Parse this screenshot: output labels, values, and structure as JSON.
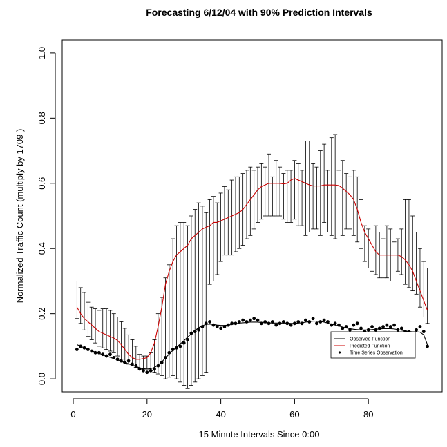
{
  "chart_data": {
    "type": "line",
    "title": "Forecasting 6/12/04 with 90% Prediction Intervals",
    "xlabel": "15 Minute Intervals Since 0:00",
    "ylabel": "Normalized Traffic Count (multiply by  1709 )",
    "xlim": [
      -3,
      100
    ],
    "ylim": [
      -0.04,
      1.04
    ],
    "x_ticks": [
      0,
      20,
      40,
      60,
      80
    ],
    "y_ticks": [
      0.0,
      0.2,
      0.4,
      0.6,
      0.8,
      1.0
    ],
    "y_tick_labels": [
      "0.0",
      "0.2",
      "0.4",
      "0.6",
      "0.8",
      "1.0"
    ],
    "grid": false,
    "legend": {
      "position": "bottom-right",
      "entries": [
        {
          "label": "Observed Function",
          "color": "#000000",
          "style": "line"
        },
        {
          "label": "Predicted Function",
          "color": "#cc0000",
          "style": "line"
        },
        {
          "label": "Time Series Observation",
          "color": "#000000",
          "style": "point"
        }
      ]
    },
    "colors": {
      "observed": "#000000",
      "predicted": "#cc0000",
      "interval": "#000000"
    },
    "x": [
      1,
      2,
      3,
      4,
      5,
      6,
      7,
      8,
      9,
      10,
      11,
      12,
      13,
      14,
      15,
      16,
      17,
      18,
      19,
      20,
      21,
      22,
      23,
      24,
      25,
      26,
      27,
      28,
      29,
      30,
      31,
      32,
      33,
      34,
      35,
      36,
      37,
      38,
      39,
      40,
      41,
      42,
      43,
      44,
      45,
      46,
      47,
      48,
      49,
      50,
      51,
      52,
      53,
      54,
      55,
      56,
      57,
      58,
      59,
      60,
      61,
      62,
      63,
      64,
      65,
      66,
      67,
      68,
      69,
      70,
      71,
      72,
      73,
      74,
      75,
      76,
      77,
      78,
      79,
      80,
      81,
      82,
      83,
      84,
      85,
      86,
      87,
      88,
      89,
      90,
      91,
      92,
      93,
      94,
      95,
      96
    ],
    "series": [
      {
        "name": "Time Series Observation",
        "kind": "points",
        "values": [
          0.09,
          0.1,
          0.095,
          0.09,
          0.085,
          0.08,
          0.08,
          0.075,
          0.07,
          0.075,
          0.065,
          0.06,
          0.055,
          0.05,
          0.055,
          0.045,
          0.04,
          0.03,
          0.025,
          0.02,
          0.025,
          0.03,
          0.04,
          0.05,
          0.065,
          0.08,
          0.09,
          0.095,
          0.1,
          0.11,
          0.12,
          0.14,
          0.145,
          0.15,
          0.16,
          0.17,
          0.175,
          0.165,
          0.16,
          0.155,
          0.16,
          0.165,
          0.17,
          0.17,
          0.175,
          0.18,
          0.175,
          0.18,
          0.185,
          0.18,
          0.17,
          0.175,
          0.17,
          0.175,
          0.165,
          0.17,
          0.175,
          0.17,
          0.165,
          0.17,
          0.175,
          0.17,
          0.18,
          0.175,
          0.185,
          0.17,
          0.175,
          0.18,
          0.175,
          0.165,
          0.17,
          0.165,
          0.155,
          0.16,
          0.15,
          0.165,
          0.17,
          0.155,
          0.145,
          0.15,
          0.16,
          0.15,
          0.155,
          0.16,
          0.165,
          0.16,
          0.165,
          0.15,
          0.155,
          0.145,
          0.145,
          0.14,
          0.15,
          0.16,
          0.145,
          0.1
        ]
      },
      {
        "name": "Observed Function",
        "kind": "line",
        "values": [
          0.105,
          0.1,
          0.095,
          0.09,
          0.086,
          0.082,
          0.078,
          0.074,
          0.07,
          0.066,
          0.062,
          0.058,
          0.054,
          0.05,
          0.046,
          0.042,
          0.038,
          0.034,
          0.031,
          0.03,
          0.031,
          0.035,
          0.042,
          0.052,
          0.064,
          0.076,
          0.087,
          0.097,
          0.107,
          0.117,
          0.128,
          0.138,
          0.148,
          0.157,
          0.163,
          0.167,
          0.168,
          0.167,
          0.165,
          0.164,
          0.164,
          0.165,
          0.167,
          0.169,
          0.171,
          0.172,
          0.173,
          0.174,
          0.174,
          0.174,
          0.173,
          0.172,
          0.172,
          0.171,
          0.171,
          0.171,
          0.171,
          0.171,
          0.17,
          0.17,
          0.171,
          0.172,
          0.174,
          0.176,
          0.177,
          0.177,
          0.176,
          0.174,
          0.171,
          0.168,
          0.165,
          0.162,
          0.159,
          0.156,
          0.154,
          0.152,
          0.151,
          0.15,
          0.15,
          0.15,
          0.151,
          0.152,
          0.153,
          0.154,
          0.154,
          0.154,
          0.153,
          0.151,
          0.149,
          0.147,
          0.145,
          0.144,
          0.144,
          0.143,
          0.135,
          0.105
        ]
      },
      {
        "name": "Predicted Function",
        "kind": "line",
        "values": [
          0.22,
          0.2,
          0.185,
          0.175,
          0.165,
          0.155,
          0.145,
          0.14,
          0.135,
          0.13,
          0.125,
          0.118,
          0.105,
          0.09,
          0.075,
          0.065,
          0.06,
          0.06,
          0.062,
          0.065,
          0.08,
          0.11,
          0.16,
          0.22,
          0.29,
          0.33,
          0.36,
          0.38,
          0.39,
          0.4,
          0.41,
          0.43,
          0.44,
          0.45,
          0.46,
          0.465,
          0.47,
          0.48,
          0.48,
          0.485,
          0.49,
          0.495,
          0.5,
          0.505,
          0.51,
          0.52,
          0.535,
          0.55,
          0.565,
          0.58,
          0.59,
          0.595,
          0.6,
          0.6,
          0.6,
          0.6,
          0.598,
          0.6,
          0.61,
          0.615,
          0.61,
          0.605,
          0.6,
          0.595,
          0.592,
          0.592,
          0.592,
          0.595,
          0.595,
          0.595,
          0.595,
          0.593,
          0.585,
          0.575,
          0.565,
          0.55,
          0.52,
          0.48,
          0.45,
          0.43,
          0.41,
          0.39,
          0.38,
          0.38,
          0.38,
          0.38,
          0.38,
          0.38,
          0.375,
          0.365,
          0.35,
          0.33,
          0.3,
          0.27,
          0.24,
          0.21
        ]
      }
    ],
    "intervals": {
      "name": "90% Prediction Intervals",
      "lower": [
        0.185,
        0.17,
        0.15,
        0.13,
        0.12,
        0.11,
        0.1,
        0.095,
        0.09,
        0.085,
        0.08,
        0.07,
        0.06,
        0.05,
        0.045,
        0.04,
        0.035,
        0.03,
        0.03,
        0.03,
        0.025,
        0.02,
        0.015,
        0.01,
        0.0,
        0.005,
        0.01,
        0.0,
        -0.01,
        -0.02,
        -0.03,
        -0.02,
        -0.01,
        0.0,
        0.01,
        0.02,
        0.29,
        0.3,
        0.32,
        0.36,
        0.38,
        0.38,
        0.38,
        0.39,
        0.4,
        0.41,
        0.43,
        0.44,
        0.46,
        0.48,
        0.49,
        0.5,
        0.5,
        0.5,
        0.5,
        0.5,
        0.49,
        0.48,
        0.48,
        0.49,
        0.47,
        0.47,
        0.44,
        0.45,
        0.46,
        0.46,
        0.44,
        0.48,
        0.45,
        0.44,
        0.43,
        0.45,
        0.44,
        0.46,
        0.46,
        0.44,
        0.42,
        0.4,
        0.36,
        0.34,
        0.33,
        0.32,
        0.31,
        0.31,
        0.31,
        0.3,
        0.3,
        0.33,
        0.32,
        0.29,
        0.28,
        0.27,
        0.26,
        0.22,
        0.19,
        0.17
      ],
      "upper": [
        0.3,
        0.28,
        0.265,
        0.235,
        0.22,
        0.215,
        0.21,
        0.215,
        0.215,
        0.21,
        0.2,
        0.19,
        0.175,
        0.155,
        0.135,
        0.12,
        0.1,
        0.075,
        0.07,
        0.07,
        0.08,
        0.12,
        0.2,
        0.25,
        0.31,
        0.35,
        0.43,
        0.47,
        0.48,
        0.48,
        0.47,
        0.5,
        0.52,
        0.54,
        0.53,
        0.51,
        0.55,
        0.56,
        0.54,
        0.57,
        0.59,
        0.58,
        0.61,
        0.62,
        0.62,
        0.63,
        0.64,
        0.65,
        0.64,
        0.65,
        0.66,
        0.65,
        0.69,
        0.62,
        0.67,
        0.65,
        0.63,
        0.64,
        0.64,
        0.67,
        0.66,
        0.64,
        0.73,
        0.73,
        0.66,
        0.65,
        0.7,
        0.72,
        0.64,
        0.74,
        0.75,
        0.64,
        0.67,
        0.63,
        0.62,
        0.64,
        0.62,
        0.55,
        0.47,
        0.46,
        0.45,
        0.47,
        0.45,
        0.43,
        0.47,
        0.46,
        0.42,
        0.43,
        0.46,
        0.55,
        0.55,
        0.5,
        0.45,
        0.4,
        0.36,
        0.34
      ]
    }
  }
}
